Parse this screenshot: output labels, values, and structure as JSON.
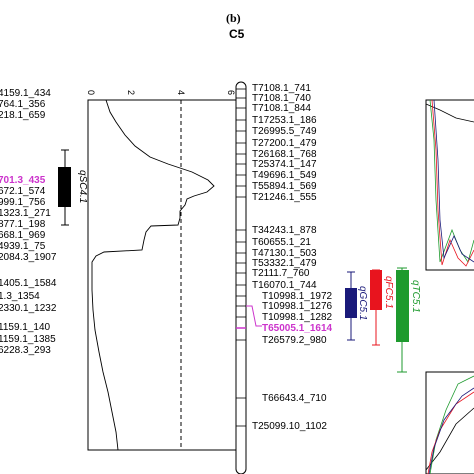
{
  "panel_label": "(b)",
  "chromosome_name": "C5",
  "left_markers": [
    {
      "text": "4159.1_434",
      "highlight": false
    },
    {
      "text": "764.1_356",
      "highlight": false
    },
    {
      "text": "218.1_659",
      "highlight": false
    },
    {
      "text": "701.3_435",
      "highlight": true
    },
    {
      "text": "672.1_574",
      "highlight": false
    },
    {
      "text": "999.1_756",
      "highlight": false
    },
    {
      "text": "1323.1_271",
      "highlight": false
    },
    {
      "text": "877.1_198",
      "highlight": false
    },
    {
      "text": "668.1_969",
      "highlight": false
    },
    {
      "text": "4939.1_75",
      "highlight": false
    },
    {
      "text": "2084.3_1907",
      "highlight": false
    },
    {
      "text": "1405.1_1584",
      "highlight": false
    },
    {
      "text": "1.3_1354",
      "highlight": false
    },
    {
      "text": "2330.1_1232",
      "highlight": false
    },
    {
      "text": "1159.1_140",
      "highlight": false
    },
    {
      "text": "1159.1_1385",
      "highlight": false
    },
    {
      "text": "6228.3_293",
      "highlight": false
    }
  ],
  "right_markers": [
    {
      "text": "T7108.1_741",
      "highlight": false
    },
    {
      "text": "T7108.1_740",
      "highlight": false
    },
    {
      "text": "T7108.1_844",
      "highlight": false
    },
    {
      "text": "T17253.1_186",
      "highlight": false
    },
    {
      "text": "T26995.5_749",
      "highlight": false
    },
    {
      "text": "T27200.1_479",
      "highlight": false
    },
    {
      "text": "T26168.1_768",
      "highlight": false
    },
    {
      "text": "T25374.1_147",
      "highlight": false
    },
    {
      "text": "T49696.1_549",
      "highlight": false
    },
    {
      "text": "T55894.1_569",
      "highlight": false
    },
    {
      "text": "T21246.1_555",
      "highlight": false
    },
    {
      "text": "T34243.1_878",
      "highlight": false
    },
    {
      "text": "T60655.1_21",
      "highlight": false
    },
    {
      "text": "T47130.1_503",
      "highlight": false
    },
    {
      "text": "T53332.1_479",
      "highlight": false
    },
    {
      "text": "T2111.7_760",
      "highlight": false
    },
    {
      "text": "T16070.1_744",
      "highlight": false
    },
    {
      "text": "T10998.1_1972",
      "highlight": false
    },
    {
      "text": "T10998.1_1276",
      "highlight": false
    },
    {
      "text": "T10998.1_1282",
      "highlight": false
    },
    {
      "text": "T65005.1_1614",
      "highlight": true
    },
    {
      "text": "T26579.2_980",
      "highlight": false
    },
    {
      "text": "T66643.4_710",
      "highlight": false
    },
    {
      "text": "T25099.10_1102",
      "highlight": false
    }
  ],
  "lod_axis_ticks": [
    "0",
    "2",
    "4",
    "6"
  ],
  "qtl_labels": {
    "left": "qSC4.1",
    "gc": "qGC5.1",
    "fc": "qFC5.1",
    "tc": "qTC5.1"
  },
  "colors": {
    "highlight": "#cc33cc",
    "qgc": "#1a1a7a",
    "qfc": "#e8141e",
    "qtc": "#1e9a2e",
    "left_qtl": "#000000"
  }
}
